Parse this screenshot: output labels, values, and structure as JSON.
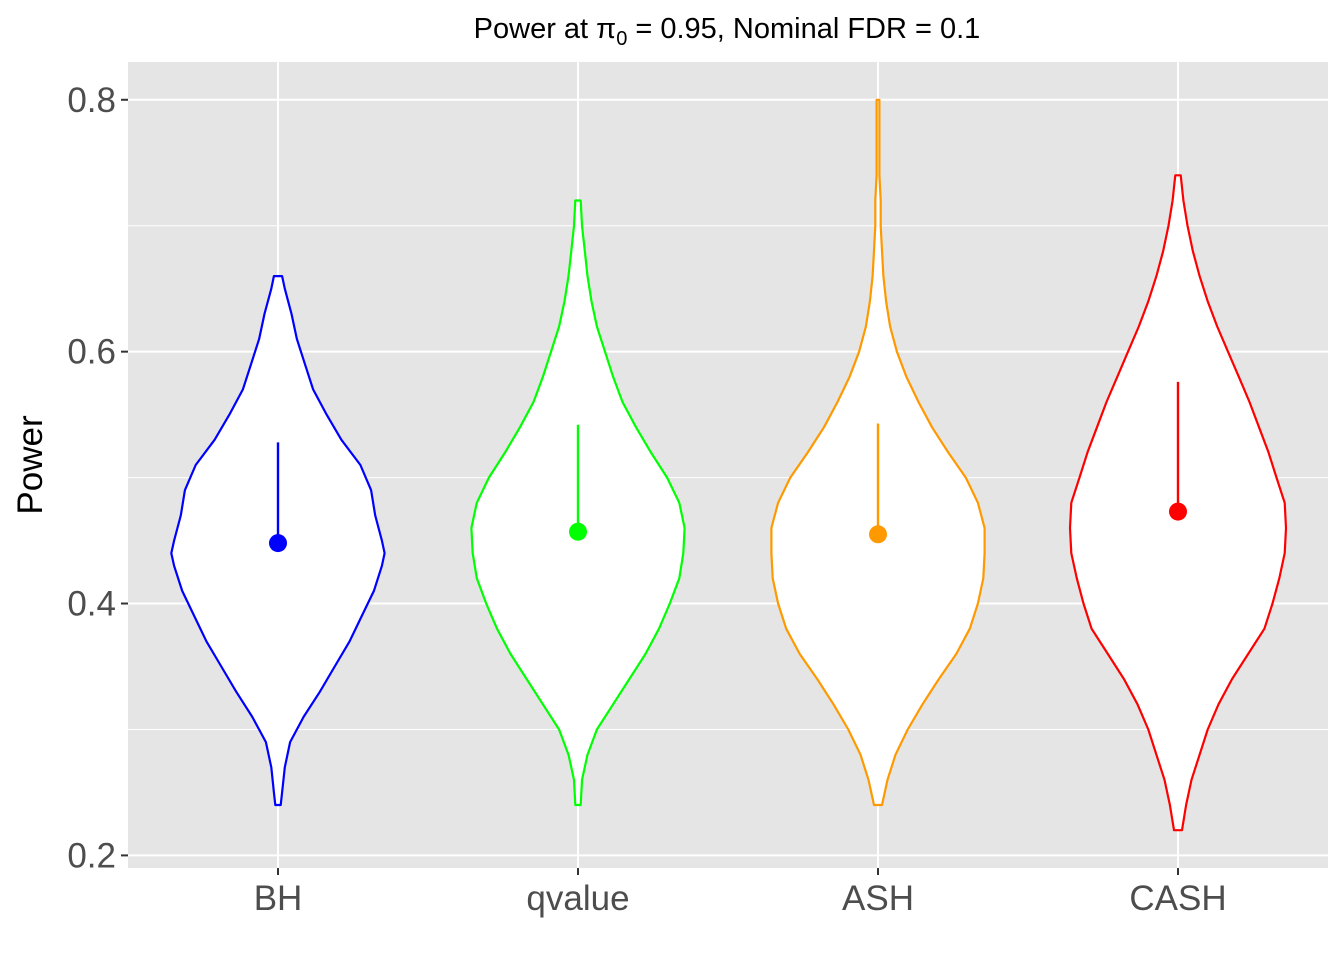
{
  "chart_data": {
    "type": "violin",
    "title_parts": [
      "Power at ",
      "π",
      "0",
      " = 0.95, Nominal FDR = 0.1"
    ],
    "xlabel": "",
    "ylabel": "Power",
    "ylim": [
      0.19,
      0.83
    ],
    "yticks": [
      0.2,
      0.4,
      0.6,
      0.8
    ],
    "ytick_labels": [
      "0.2",
      "0.4",
      "0.6",
      "0.8"
    ],
    "background": "#e5e5e5",
    "grid": true,
    "legend": "none",
    "categories": [
      "BH",
      "qvalue",
      "ASH",
      "CASH"
    ],
    "series": [
      {
        "category": "BH",
        "color": "#0000ff",
        "min": 0.24,
        "max": 0.66,
        "mean": 0.448,
        "mean_plus_sd": 0.528,
        "density": [
          [
            0.24,
            0.02
          ],
          [
            0.25,
            0.03
          ],
          [
            0.27,
            0.05
          ],
          [
            0.29,
            0.09
          ],
          [
            0.31,
            0.19
          ],
          [
            0.33,
            0.31
          ],
          [
            0.35,
            0.42
          ],
          [
            0.37,
            0.53
          ],
          [
            0.39,
            0.62
          ],
          [
            0.41,
            0.71
          ],
          [
            0.43,
            0.77
          ],
          [
            0.44,
            0.79
          ],
          [
            0.45,
            0.77
          ],
          [
            0.47,
            0.72
          ],
          [
            0.49,
            0.69
          ],
          [
            0.51,
            0.61
          ],
          [
            0.53,
            0.47
          ],
          [
            0.55,
            0.36
          ],
          [
            0.57,
            0.26
          ],
          [
            0.59,
            0.2
          ],
          [
            0.61,
            0.14
          ],
          [
            0.63,
            0.1
          ],
          [
            0.65,
            0.05
          ],
          [
            0.66,
            0.03
          ]
        ]
      },
      {
        "category": "qvalue",
        "color": "#00ff00",
        "min": 0.24,
        "max": 0.72,
        "mean": 0.457,
        "mean_plus_sd": 0.542,
        "density": [
          [
            0.24,
            0.02
          ],
          [
            0.26,
            0.03
          ],
          [
            0.28,
            0.07
          ],
          [
            0.3,
            0.14
          ],
          [
            0.32,
            0.26
          ],
          [
            0.34,
            0.38
          ],
          [
            0.36,
            0.5
          ],
          [
            0.38,
            0.6
          ],
          [
            0.4,
            0.68
          ],
          [
            0.42,
            0.75
          ],
          [
            0.44,
            0.78
          ],
          [
            0.46,
            0.79
          ],
          [
            0.48,
            0.75
          ],
          [
            0.5,
            0.66
          ],
          [
            0.52,
            0.54
          ],
          [
            0.54,
            0.43
          ],
          [
            0.56,
            0.33
          ],
          [
            0.58,
            0.26
          ],
          [
            0.6,
            0.2
          ],
          [
            0.62,
            0.14
          ],
          [
            0.64,
            0.1
          ],
          [
            0.66,
            0.07
          ],
          [
            0.68,
            0.05
          ],
          [
            0.7,
            0.03
          ],
          [
            0.72,
            0.02
          ]
        ]
      },
      {
        "category": "ASH",
        "color": "#ff9900",
        "min": 0.24,
        "max": 0.8,
        "mean": 0.455,
        "mean_plus_sd": 0.543,
        "density": [
          [
            0.24,
            0.03
          ],
          [
            0.26,
            0.07
          ],
          [
            0.28,
            0.13
          ],
          [
            0.3,
            0.22
          ],
          [
            0.32,
            0.33
          ],
          [
            0.34,
            0.45
          ],
          [
            0.36,
            0.58
          ],
          [
            0.38,
            0.68
          ],
          [
            0.4,
            0.74
          ],
          [
            0.42,
            0.78
          ],
          [
            0.44,
            0.79
          ],
          [
            0.46,
            0.79
          ],
          [
            0.48,
            0.74
          ],
          [
            0.5,
            0.65
          ],
          [
            0.52,
            0.52
          ],
          [
            0.54,
            0.4
          ],
          [
            0.56,
            0.3
          ],
          [
            0.58,
            0.21
          ],
          [
            0.6,
            0.14
          ],
          [
            0.62,
            0.09
          ],
          [
            0.64,
            0.06
          ],
          [
            0.66,
            0.04
          ],
          [
            0.68,
            0.03
          ],
          [
            0.7,
            0.02
          ],
          [
            0.72,
            0.02
          ],
          [
            0.74,
            0.01
          ],
          [
            0.77,
            0.01
          ],
          [
            0.8,
            0.01
          ]
        ]
      },
      {
        "category": "CASH",
        "color": "#ff0000",
        "min": 0.22,
        "max": 0.74,
        "mean": 0.473,
        "mean_plus_sd": 0.576,
        "density": [
          [
            0.22,
            0.03
          ],
          [
            0.24,
            0.06
          ],
          [
            0.26,
            0.1
          ],
          [
            0.28,
            0.16
          ],
          [
            0.3,
            0.22
          ],
          [
            0.32,
            0.3
          ],
          [
            0.34,
            0.4
          ],
          [
            0.36,
            0.52
          ],
          [
            0.38,
            0.64
          ],
          [
            0.4,
            0.7
          ],
          [
            0.42,
            0.75
          ],
          [
            0.44,
            0.79
          ],
          [
            0.46,
            0.8
          ],
          [
            0.48,
            0.79
          ],
          [
            0.5,
            0.73
          ],
          [
            0.52,
            0.67
          ],
          [
            0.54,
            0.6
          ],
          [
            0.56,
            0.53
          ],
          [
            0.58,
            0.45
          ],
          [
            0.6,
            0.37
          ],
          [
            0.62,
            0.29
          ],
          [
            0.64,
            0.22
          ],
          [
            0.66,
            0.16
          ],
          [
            0.68,
            0.11
          ],
          [
            0.7,
            0.07
          ],
          [
            0.72,
            0.04
          ],
          [
            0.74,
            0.02
          ]
        ]
      }
    ]
  }
}
